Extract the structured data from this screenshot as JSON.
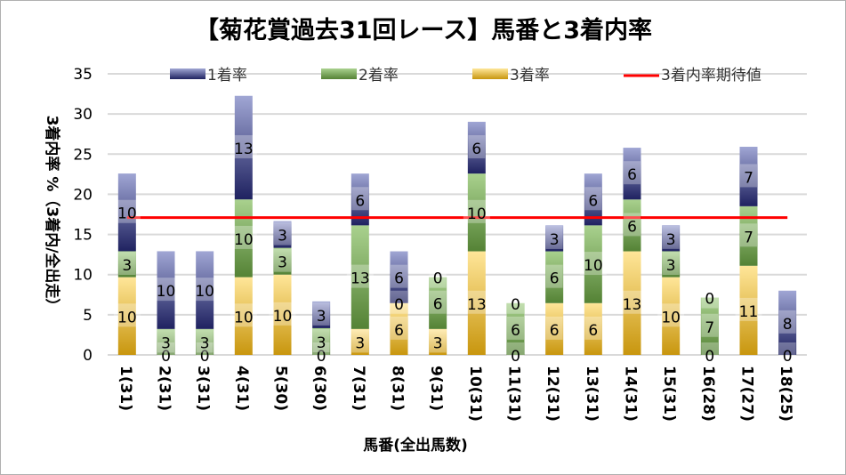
{
  "chart_data": {
    "type": "bar",
    "stacked": true,
    "title": "【菊花賞過去31回レース】馬番と3着内率",
    "xlabel": "馬番(全出馬数)",
    "ylabel": "3着内率 %（3着内/全出走）",
    "ylim": [
      0,
      35
    ],
    "yticks": [
      0,
      5,
      10,
      15,
      20,
      25,
      30,
      35
    ],
    "grid": true,
    "legend_position": "top",
    "categories": [
      "1(31)",
      "2(31)",
      "3(31)",
      "4(31)",
      "5(30)",
      "6(30)",
      "7(31)",
      "8(31)",
      "9(31)",
      "10(31)",
      "11(31)",
      "12(31)",
      "13(31)",
      "14(31)",
      "15(31)",
      "16(28)",
      "17(27)",
      "18(25)"
    ],
    "series": [
      {
        "name": "3着率",
        "color": "#c8960e",
        "values": [
          9.68,
          0,
          0,
          9.68,
          10.0,
          0,
          3.23,
          6.45,
          3.23,
          12.9,
          0,
          6.45,
          6.45,
          12.9,
          9.68,
          0,
          11.1,
          0
        ],
        "labels": [
          "10",
          "0",
          "0",
          "10",
          "10",
          "0",
          "3",
          "6",
          "3",
          "13",
          "0",
          "6",
          "6",
          "13",
          "10",
          "0",
          "11",
          "0"
        ]
      },
      {
        "name": "2着率",
        "color": "#548235",
        "values": [
          3.23,
          3.23,
          3.23,
          9.68,
          3.33,
          3.33,
          12.9,
          0,
          6.45,
          9.68,
          6.45,
          6.45,
          9.68,
          6.45,
          3.23,
          7.14,
          7.41,
          0
        ],
        "labels": [
          "3",
          "3",
          "3",
          "10",
          "3",
          "3",
          "13",
          "0",
          "6",
          "10",
          "6",
          "6",
          "10",
          "6",
          "3",
          "7",
          "7",
          ""
        ]
      },
      {
        "name": "1着率",
        "color": "#2f3580",
        "values": [
          9.68,
          9.68,
          9.68,
          12.9,
          3.33,
          3.33,
          6.45,
          6.45,
          0,
          6.45,
          0,
          3.23,
          6.45,
          6.45,
          3.23,
          0,
          7.41,
          8.0
        ],
        "labels": [
          "10",
          "10",
          "10",
          "13",
          "3",
          "3",
          "6",
          "6",
          "0",
          "6",
          "0",
          "3",
          "6",
          "6",
          "3",
          "0",
          "7",
          "8"
        ]
      }
    ],
    "expected_line": {
      "name": "3着内率期待値",
      "color": "#ff0000",
      "value": 17.1
    }
  }
}
